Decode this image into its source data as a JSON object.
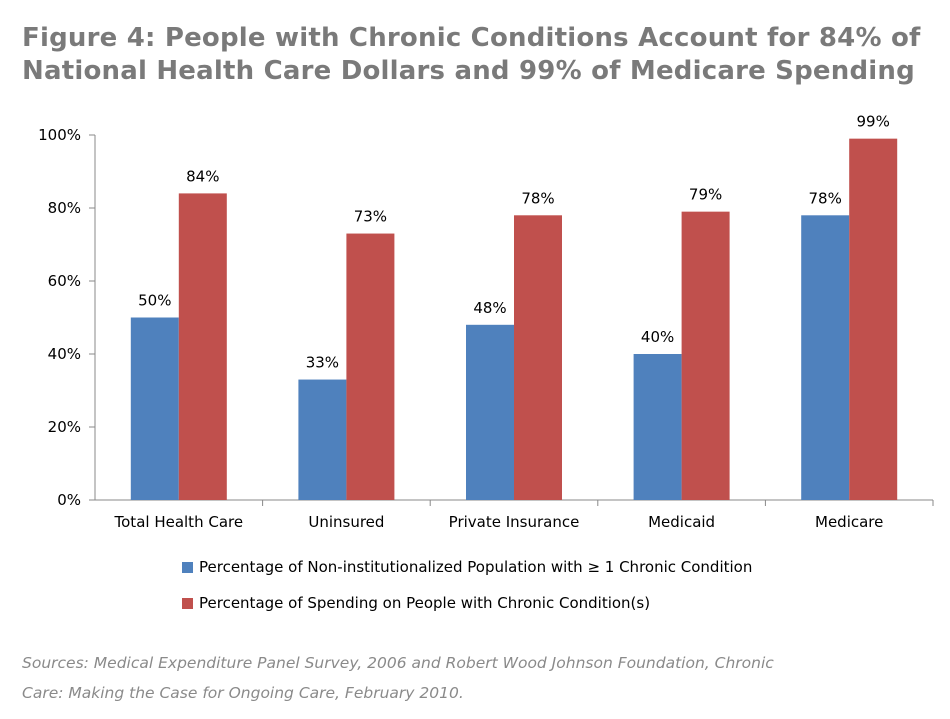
{
  "title_lines": [
    "Figure 4: People with Chronic Conditions Account for 84% of",
    "National Health Care Dollars and 99% of Medicare Spending"
  ],
  "chart_data": {
    "type": "bar",
    "categories": [
      "Total Health Care",
      "Uninsured",
      "Private Insurance",
      "Medicaid",
      "Medicare"
    ],
    "series": [
      {
        "name": "Percentage of Non-institutionalized Population with ≥ 1 Chronic Condition",
        "color": "#4f81bd",
        "values": [
          50,
          33,
          48,
          40,
          78
        ],
        "labels": [
          "50%",
          "33%",
          "48%",
          "40%",
          "78%"
        ]
      },
      {
        "name": "Percentage of Spending on People with Chronic Condition(s)",
        "color": "#c0504d",
        "values": [
          84,
          73,
          78,
          79,
          99
        ],
        "labels": [
          "84%",
          "73%",
          "78%",
          "79%",
          "99%"
        ]
      }
    ],
    "ylim": [
      0,
      100
    ],
    "yticks": [
      0,
      20,
      40,
      60,
      80,
      100
    ],
    "ytick_labels": [
      "0%",
      "20%",
      "40%",
      "60%",
      "80%",
      "100%"
    ],
    "grid": false,
    "legend_position": "bottom"
  },
  "source_lines": [
    "Sources: Medical Expenditure Panel Survey, 2006 and Robert Wood Johnson Foundation, Chronic",
    "Care: Making the Case for Ongoing Care, February 2010."
  ]
}
